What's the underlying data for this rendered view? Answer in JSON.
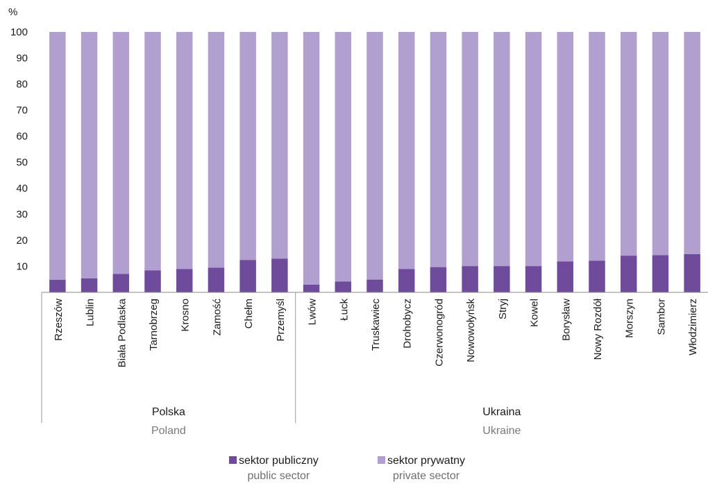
{
  "chart_data": {
    "type": "bar",
    "stacked": true,
    "ylabel": "%",
    "ylim": [
      0,
      100
    ],
    "yticks": [
      10,
      20,
      30,
      40,
      50,
      60,
      70,
      80,
      90,
      100
    ],
    "categories": [
      "Rzeszów",
      "Lublin",
      "Biała Podlaska",
      "Tarnobrzeg",
      "Krosno",
      "Zamość",
      "Chełm",
      "Przemyśl",
      "Lwów",
      "Łuck",
      "Truskawiec",
      "Drohobycz",
      "Czerwonogród",
      "Nowowołyńsk",
      "Stryj",
      "Kowel",
      "Borysław",
      "Nowy Rozdół",
      "Morszyn",
      "Sambor",
      "Włodzimierz"
    ],
    "groups": [
      {
        "label": "Polska",
        "sublabel": "Poland",
        "start": 0,
        "end": 7
      },
      {
        "label": "Ukraina",
        "sublabel": "Ukraine",
        "start": 8,
        "end": 20
      }
    ],
    "series": [
      {
        "name": "sektor publiczny",
        "sublabel": "public sector",
        "color": "#6f4c9b",
        "values": [
          4.8,
          5.4,
          7.1,
          8.4,
          9.0,
          9.5,
          12.4,
          13.0,
          3.0,
          4.2,
          4.9,
          9.0,
          9.7,
          10.1,
          10.1,
          10.1,
          11.9,
          12.2,
          14.1,
          14.3,
          14.7
        ]
      },
      {
        "name": "sektor prywatny",
        "sublabel": "private sector",
        "color": "#b19fcf",
        "values": [
          95.2,
          94.6,
          92.9,
          91.6,
          91.0,
          90.5,
          87.6,
          87.0,
          97.0,
          95.8,
          95.1,
          91.0,
          90.3,
          89.9,
          89.9,
          89.9,
          88.1,
          87.8,
          85.9,
          85.7,
          85.3
        ]
      }
    ],
    "grid": false,
    "legend_position": "bottom-center"
  }
}
